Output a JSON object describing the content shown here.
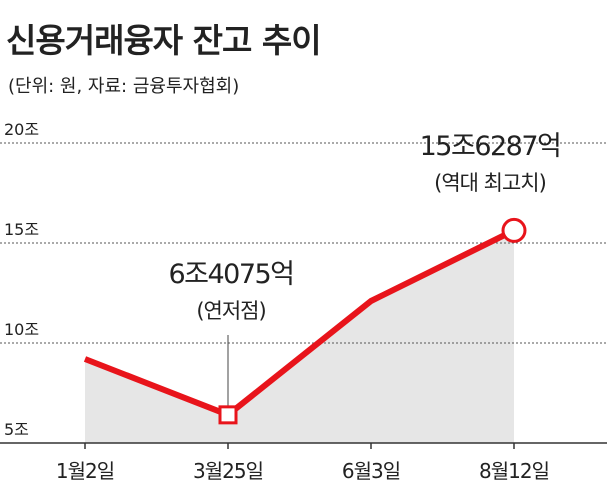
{
  "chart_data": {
    "type": "line",
    "title": "신용거래융자 잔고 추이",
    "subtitle": "(단위: 원, 자료: 금융투자협회)",
    "categories": [
      "1월2일",
      "3월25일",
      "6월3일",
      "8월12일"
    ],
    "values": [
      9.2,
      6.4075,
      12.1,
      15.6287
    ],
    "value_labels": [
      null,
      "6조4075억",
      null,
      "15조6287억"
    ],
    "value_notes": [
      null,
      "(연저점)",
      null,
      "(역대 최고치)"
    ],
    "markers": [
      null,
      "square",
      null,
      "circle"
    ],
    "color": "#e8141b",
    "area_color": "#e6e6e6",
    "ylim": [
      5,
      20
    ],
    "yticks": [
      {
        "value": 5,
        "label": "5조"
      },
      {
        "value": 10,
        "label": "10조"
      },
      {
        "value": 15,
        "label": "15조"
      },
      {
        "value": 20,
        "label": "20조"
      }
    ],
    "grid": true
  }
}
